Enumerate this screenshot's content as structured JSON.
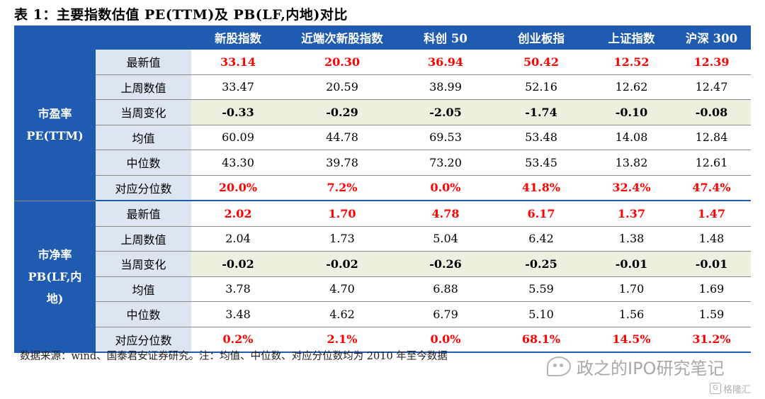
{
  "title": "表 1：主要指数估值 PE(TTM)及 PB(LF,内地)对比",
  "columns": [
    "新股指数",
    "近端次新股指数",
    "科创 50",
    "创业板指",
    "上证指数",
    "沪深 300"
  ],
  "groups": [
    {
      "label_line1": "市盈率",
      "label_line2": "PE(TTM)",
      "rows": [
        {
          "label": "最新值",
          "values": [
            "33.14",
            "20.30",
            "36.94",
            "50.42",
            "12.52",
            "12.39"
          ]
        },
        {
          "label": "上周数值",
          "values": [
            "33.47",
            "20.59",
            "38.99",
            "52.16",
            "12.62",
            "12.47"
          ]
        },
        {
          "label": "当周变化",
          "values": [
            "-0.33",
            "-0.29",
            "-2.05",
            "-1.74",
            "-0.10",
            "-0.08"
          ]
        },
        {
          "label": "均值",
          "values": [
            "60.09",
            "44.78",
            "69.53",
            "53.48",
            "14.08",
            "12.84"
          ]
        },
        {
          "label": "中位数",
          "values": [
            "43.30",
            "39.78",
            "73.20",
            "53.45",
            "13.82",
            "12.61"
          ]
        },
        {
          "label": "对应分位数",
          "values": [
            "20.0%",
            "7.2%",
            "0.0%",
            "41.8%",
            "32.4%",
            "47.4%"
          ]
        }
      ]
    },
    {
      "label_line1": "市净率",
      "label_line2": "PB(LF,内",
      "label_line3": "地)",
      "rows": [
        {
          "label": "最新值",
          "values": [
            "2.02",
            "1.70",
            "4.78",
            "6.17",
            "1.37",
            "1.47"
          ]
        },
        {
          "label": "上周数值",
          "values": [
            "2.04",
            "1.73",
            "5.04",
            "6.42",
            "1.38",
            "1.48"
          ]
        },
        {
          "label": "当周变化",
          "values": [
            "-0.02",
            "-0.02",
            "-0.26",
            "-0.25",
            "-0.01",
            "-0.01"
          ]
        },
        {
          "label": "均值",
          "values": [
            "3.78",
            "4.70",
            "6.88",
            "5.59",
            "1.70",
            "1.69"
          ]
        },
        {
          "label": "中位数",
          "values": [
            "3.48",
            "4.62",
            "6.79",
            "5.10",
            "1.56",
            "1.59"
          ]
        },
        {
          "label": "对应分位数",
          "values": [
            "0.2%",
            "2.1%",
            "0.0%",
            "68.1%",
            "14.5%",
            "31.2%"
          ]
        }
      ]
    }
  ],
  "note": "数据来源：wind、国泰君安证券研究。注：均值、中位数、对应分位数均为 2010 年至今数据",
  "watermark": "政之的IPO研究笔记",
  "logo_text": "格隆汇",
  "colors": {
    "header_blue": "#1f5bb0",
    "label_bg": "#dce6f1",
    "change_bg": "#ebf1de",
    "highlight_red": "#ff0000"
  }
}
